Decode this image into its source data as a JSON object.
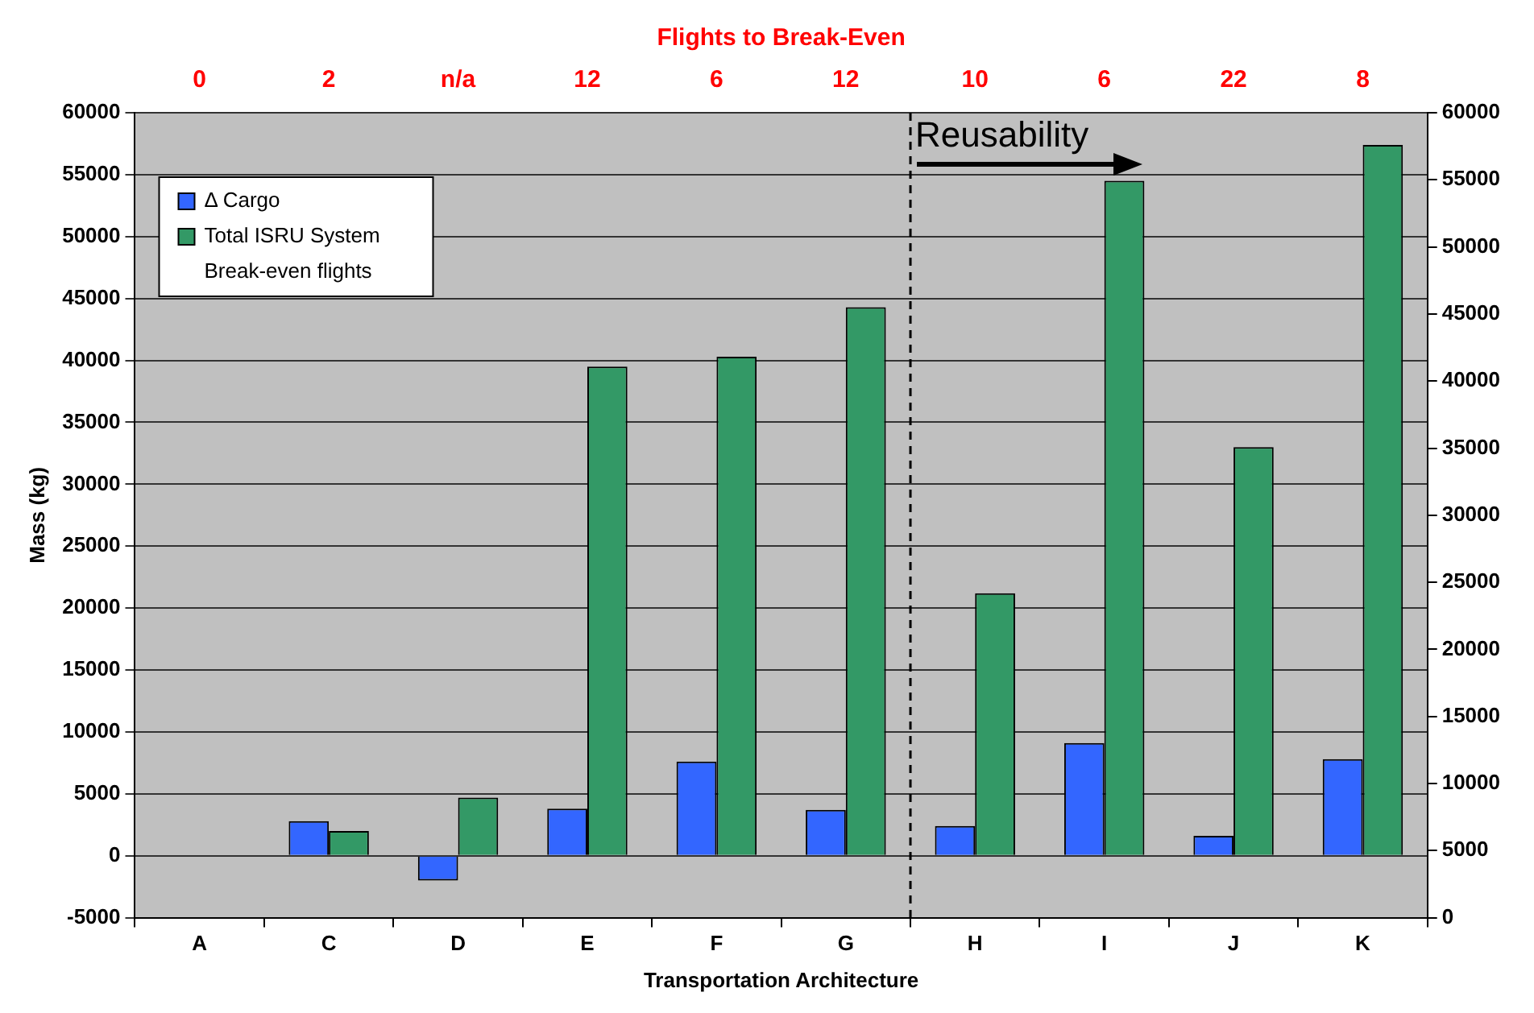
{
  "chart_data": {
    "type": "bar",
    "xlabel": "Transportation Architecture",
    "ylabel": "Mass (kg)",
    "x2label": "Flights to Break-Even",
    "categories": [
      "A",
      "C",
      "D",
      "E",
      "F",
      "G",
      "H",
      "I",
      "J",
      "K"
    ],
    "series": [
      {
        "name": "Δ Cargo",
        "color": "#3366ff",
        "values": [
          null,
          2800,
          -2000,
          3800,
          7600,
          3700,
          2400,
          9100,
          1600,
          7800
        ]
      },
      {
        "name": "Total ISRU System",
        "color": "#339966",
        "values": [
          null,
          2000,
          4700,
          39500,
          40300,
          44300,
          21200,
          54500,
          33000,
          57400
        ]
      }
    ],
    "annotations": [
      "Break-even flights",
      "0",
      "2",
      "n/a",
      "12",
      "6",
      "12",
      "10",
      "6",
      "22",
      "8"
    ],
    "ylim": [
      -5000,
      60000
    ],
    "yticks": [
      -5000,
      0,
      5000,
      10000,
      15000,
      20000,
      25000,
      30000,
      35000,
      40000,
      45000,
      50000,
      55000,
      60000
    ],
    "y2lim": [
      0,
      60000
    ],
    "y2ticks": [
      0,
      5000,
      10000,
      15000,
      20000,
      25000,
      30000,
      35000,
      40000,
      45000,
      50000,
      55000,
      60000
    ],
    "ref_lines": [
      {
        "axis": "x",
        "value": "H",
        "label": "Reusability",
        "line_style": "dashed",
        "color": "#000000"
      }
    ],
    "grid": "y",
    "legend": "top left"
  }
}
